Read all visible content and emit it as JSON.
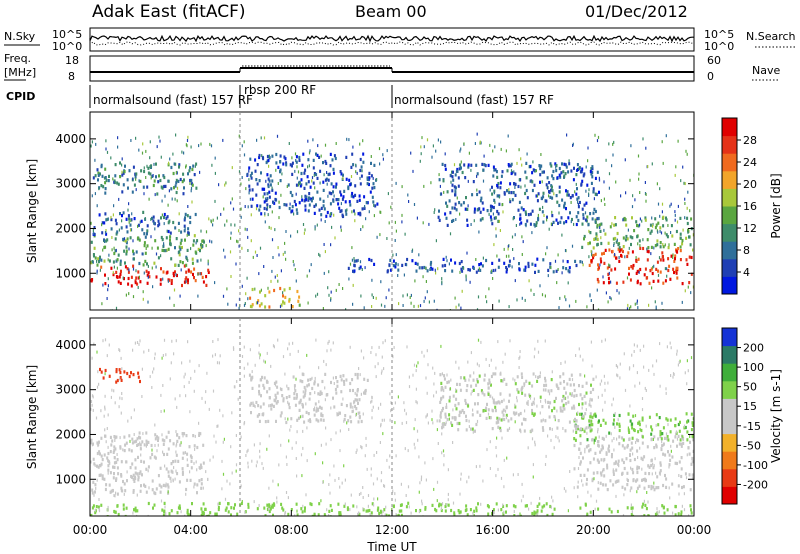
{
  "header": {
    "station": "Adak East (fitACF)",
    "beam": "Beam 00",
    "date": "01/Dec/2012"
  },
  "top_panels": {
    "nsky_label": "N.Sky",
    "nsearch_label": "N.Search",
    "nsky_ticks": [
      "10^5",
      "10^0"
    ],
    "nsearch_ticks": [
      "10^5",
      "10^0"
    ],
    "freq_label_1": "Freq.",
    "freq_label_2": "[MHz]",
    "freq_ticks": [
      "18",
      "8"
    ],
    "nave_label": "Nave",
    "nave_ticks": [
      "60",
      "0"
    ],
    "cpid_label": "CPID",
    "cpid_segments": [
      {
        "label": "normalsound (fast) 157 RF",
        "start_hour": 0,
        "end_hour": 6
      },
      {
        "label": "rbsp 200 RF",
        "start_hour": 6,
        "end_hour": 12
      },
      {
        "label": "normalsound (fast) 157 RF",
        "start_hour": 12,
        "end_hour": 24
      }
    ]
  },
  "chart_data": [
    {
      "type": "heatmap",
      "name": "power",
      "ylabel": "Slant Range [km]",
      "ylim": [
        180,
        4600
      ],
      "yticks": [
        "1000",
        "2000",
        "3000",
        "4000"
      ],
      "colorbar": {
        "label": "Power [dB]",
        "ticks": [
          "4",
          "8",
          "12",
          "16",
          "20",
          "24",
          "28"
        ],
        "range": [
          0,
          30
        ]
      },
      "regions": [
        {
          "t0": 0.0,
          "t1": 4.7,
          "r0": 750,
          "r1": 1200,
          "value": 27
        },
        {
          "t0": 0.0,
          "t1": 4.5,
          "r0": 1200,
          "r1": 1900,
          "value": 12
        },
        {
          "t0": 0.1,
          "t1": 4.2,
          "r0": 1900,
          "r1": 2400,
          "value": 6
        },
        {
          "t0": 0.1,
          "t1": 4.3,
          "r0": 2800,
          "r1": 3500,
          "value": 9
        },
        {
          "t0": 19.8,
          "t1": 24.0,
          "r0": 800,
          "r1": 1600,
          "value": 26
        },
        {
          "t0": 19.5,
          "t1": 24.0,
          "r0": 1600,
          "r1": 2300,
          "value": 13
        },
        {
          "t0": 13.8,
          "t1": 20.2,
          "r0": 2100,
          "r1": 3500,
          "value": 6
        },
        {
          "t0": 6.2,
          "t1": 11.4,
          "r0": 2300,
          "r1": 3700,
          "value": 5
        },
        {
          "t0": 10.0,
          "t1": 19.5,
          "r0": 1050,
          "r1": 1350,
          "value": 5
        },
        {
          "t0": 6.3,
          "t1": 8.3,
          "r0": 280,
          "r1": 700,
          "value": 18
        }
      ]
    },
    {
      "type": "heatmap",
      "name": "velocity",
      "xlabel": "Time UT",
      "ylabel": "Slant Range [km]",
      "ylim": [
        180,
        4600
      ],
      "yticks": [
        "1000",
        "2000",
        "3000",
        "4000"
      ],
      "xticks": [
        "00:00",
        "04:00",
        "08:00",
        "12:00",
        "16:00",
        "20:00",
        "00:00"
      ],
      "xlim": [
        0,
        24
      ],
      "colorbar": {
        "label": "Velocity [m s-1]",
        "ticks": [
          "200",
          "100",
          "50",
          "15",
          "-15",
          "-50",
          "-100",
          "-200"
        ],
        "range": [
          -250,
          250
        ]
      },
      "regions": [
        {
          "t0": 0.0,
          "t1": 4.5,
          "r0": 700,
          "r1": 2100,
          "value": 0
        },
        {
          "t0": 0.3,
          "t1": 2.3,
          "r0": 3200,
          "r1": 3500,
          "value": -120
        },
        {
          "t0": 19.2,
          "t1": 24.0,
          "r0": 800,
          "r1": 2000,
          "value": 0
        },
        {
          "t0": 19.2,
          "t1": 24.0,
          "r0": 1900,
          "r1": 2500,
          "value": 40
        },
        {
          "t0": 13.8,
          "t1": 20.0,
          "r0": 2100,
          "r1": 3400,
          "value": 5
        },
        {
          "t0": 6.3,
          "t1": 11.0,
          "r0": 2300,
          "r1": 3400,
          "value": 0
        },
        {
          "t0": 0.0,
          "t1": 24.0,
          "r0": 180,
          "r1": 500,
          "value": 30
        }
      ]
    }
  ]
}
